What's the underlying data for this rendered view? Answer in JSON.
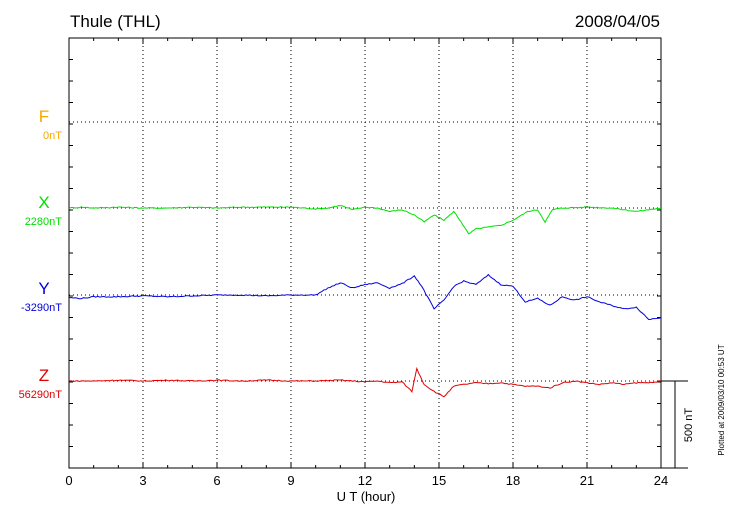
{
  "header": {
    "station": "Thule (THL)",
    "date": "2008/04/05"
  },
  "plotted_note": "Plotted at 2009/03/10 00:53 UT",
  "scale_label": "500 nT",
  "chart_data": {
    "type": "line",
    "xlabel": "U T (hour)",
    "xlim": [
      0,
      24
    ],
    "xticks": [
      "0",
      "3",
      "6",
      "9",
      "12",
      "15",
      "18",
      "21",
      "24"
    ],
    "scale_nT": 500,
    "grid": true,
    "series": [
      {
        "name": "F",
        "baseline_label": "0nT",
        "color": "#f5a800",
        "values": []
      },
      {
        "name": "X",
        "baseline_label": "2280nT",
        "color": "#00e000",
        "values": [
          [
            0,
            0
          ],
          [
            0.5,
            5
          ],
          [
            1,
            0
          ],
          [
            2,
            5
          ],
          [
            3,
            0
          ],
          [
            4,
            0
          ],
          [
            5,
            5
          ],
          [
            6,
            0
          ],
          [
            7,
            5
          ],
          [
            8,
            5
          ],
          [
            9,
            5
          ],
          [
            10,
            -5
          ],
          [
            10.5,
            0
          ],
          [
            11,
            15
          ],
          [
            11.5,
            -10
          ],
          [
            12,
            5
          ],
          [
            12.5,
            0
          ],
          [
            13,
            -20
          ],
          [
            13.5,
            -10
          ],
          [
            14,
            -40
          ],
          [
            14.4,
            -80
          ],
          [
            14.8,
            -40
          ],
          [
            15.2,
            -70
          ],
          [
            15.6,
            -20
          ],
          [
            15.9,
            -80
          ],
          [
            16.2,
            -150
          ],
          [
            16.5,
            -120
          ],
          [
            17,
            -110
          ],
          [
            17.5,
            -100
          ],
          [
            18,
            -70
          ],
          [
            18.6,
            -20
          ],
          [
            19,
            -10
          ],
          [
            19.3,
            -80
          ],
          [
            19.6,
            -10
          ],
          [
            20,
            0
          ],
          [
            21,
            5
          ],
          [
            22,
            0
          ],
          [
            23,
            -20
          ],
          [
            24,
            0
          ]
        ]
      },
      {
        "name": "Y",
        "baseline_label": "-3290nT",
        "color": "#0000e0",
        "values": [
          [
            0,
            -15
          ],
          [
            0.5,
            -20
          ],
          [
            1,
            -10
          ],
          [
            2,
            -10
          ],
          [
            3,
            -5
          ],
          [
            4,
            -10
          ],
          [
            5,
            -5
          ],
          [
            6,
            0
          ],
          [
            7,
            0
          ],
          [
            8,
            -5
          ],
          [
            9,
            0
          ],
          [
            10,
            0
          ],
          [
            10.5,
            40
          ],
          [
            11,
            70
          ],
          [
            11.5,
            40
          ],
          [
            12,
            60
          ],
          [
            12.5,
            70
          ],
          [
            13,
            40
          ],
          [
            13.5,
            65
          ],
          [
            14,
            110
          ],
          [
            14.3,
            50
          ],
          [
            14.8,
            -80
          ],
          [
            15.2,
            -30
          ],
          [
            15.6,
            50
          ],
          [
            16,
            80
          ],
          [
            16.5,
            60
          ],
          [
            17,
            115
          ],
          [
            17.5,
            60
          ],
          [
            18,
            50
          ],
          [
            18.5,
            -40
          ],
          [
            19,
            -20
          ],
          [
            19.5,
            -60
          ],
          [
            20,
            -10
          ],
          [
            20.5,
            -30
          ],
          [
            21,
            -10
          ],
          [
            21.5,
            -40
          ],
          [
            22,
            -60
          ],
          [
            22.5,
            -80
          ],
          [
            23,
            -70
          ],
          [
            23.5,
            -140
          ],
          [
            24,
            -130
          ]
        ]
      },
      {
        "name": "Z",
        "baseline_label": "56290nT",
        "color": "#e00000",
        "values": [
          [
            0,
            0
          ],
          [
            1,
            0
          ],
          [
            2,
            5
          ],
          [
            3,
            0
          ],
          [
            4,
            5
          ],
          [
            5,
            0
          ],
          [
            6,
            5
          ],
          [
            7,
            0
          ],
          [
            8,
            5
          ],
          [
            9,
            0
          ],
          [
            10,
            0
          ],
          [
            11,
            5
          ],
          [
            12,
            -5
          ],
          [
            12.5,
            0
          ],
          [
            13,
            -10
          ],
          [
            13.5,
            -5
          ],
          [
            13.9,
            -60
          ],
          [
            14.1,
            70
          ],
          [
            14.4,
            -20
          ],
          [
            14.8,
            -60
          ],
          [
            15.2,
            -90
          ],
          [
            15.6,
            -30
          ],
          [
            16,
            -20
          ],
          [
            16.5,
            -10
          ],
          [
            17,
            -15
          ],
          [
            17.5,
            -10
          ],
          [
            18,
            -20
          ],
          [
            18.5,
            -30
          ],
          [
            19,
            -30
          ],
          [
            19.5,
            -40
          ],
          [
            20,
            -10
          ],
          [
            20.5,
            0
          ],
          [
            21,
            -10
          ],
          [
            21.5,
            -20
          ],
          [
            22,
            -10
          ],
          [
            22.5,
            -20
          ],
          [
            23,
            -10
          ],
          [
            23.5,
            -10
          ],
          [
            24,
            0
          ]
        ]
      }
    ]
  }
}
